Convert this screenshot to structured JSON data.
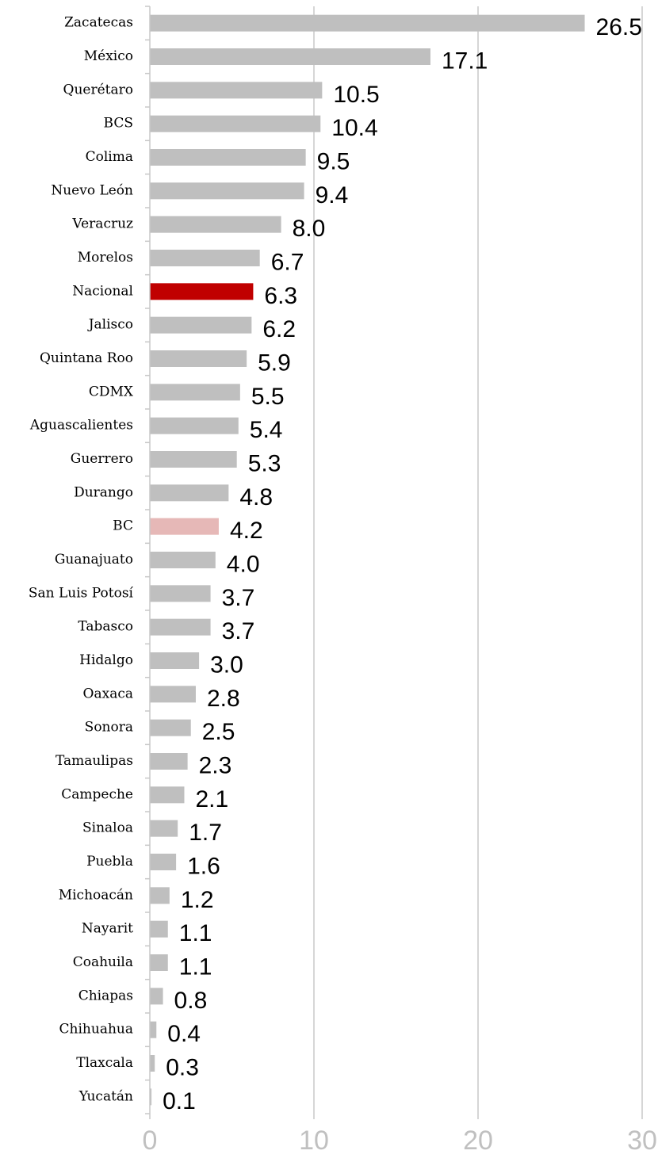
{
  "chart_data": {
    "type": "bar",
    "orientation": "horizontal",
    "categories": [
      "Zacatecas",
      "México",
      "Querétaro",
      "BCS",
      "Colima",
      "Nuevo León",
      "Veracruz",
      "Morelos",
      "Nacional",
      "Jalisco",
      "Quintana Roo",
      "CDMX",
      "Aguascalientes",
      "Guerrero",
      "Durango",
      "BC",
      "Guanajuato",
      "San Luis Potosí",
      "Tabasco",
      "Hidalgo",
      "Oaxaca",
      "Sonora",
      "Tamaulipas",
      "Campeche",
      "Sinaloa",
      "Puebla",
      "Michoacán",
      "Nayarit",
      "Coahuila",
      "Chiapas",
      "Chihuahua",
      "Tlaxcala",
      "Yucatán"
    ],
    "values": [
      26.5,
      17.1,
      10.5,
      10.4,
      9.5,
      9.4,
      8.0,
      6.7,
      6.3,
      6.2,
      5.9,
      5.5,
      5.4,
      5.3,
      4.8,
      4.2,
      4.0,
      3.7,
      3.7,
      3.0,
      2.8,
      2.5,
      2.3,
      2.1,
      1.7,
      1.6,
      1.2,
      1.1,
      1.1,
      0.8,
      0.4,
      0.3,
      0.1
    ],
    "value_labels": [
      "26.5",
      "17.1",
      "10.5",
      "10.4",
      "9.5",
      "9.4",
      "8.0",
      "6.7",
      "6.3",
      "6.2",
      "5.9",
      "5.5",
      "5.4",
      "5.3",
      "4.8",
      "4.2",
      "4.0",
      "3.7",
      "3.7",
      "3.0",
      "2.8",
      "2.5",
      "2.3",
      "2.1",
      "1.7",
      "1.6",
      "1.2",
      "1.1",
      "1.1",
      "0.8",
      "0.4",
      "0.3",
      "0.1"
    ],
    "colors": [
      "#bfbfbf",
      "#bfbfbf",
      "#bfbfbf",
      "#bfbfbf",
      "#bfbfbf",
      "#bfbfbf",
      "#bfbfbf",
      "#bfbfbf",
      "#c00000",
      "#bfbfbf",
      "#bfbfbf",
      "#bfbfbf",
      "#bfbfbf",
      "#bfbfbf",
      "#bfbfbf",
      "#e6b8b7",
      "#bfbfbf",
      "#bfbfbf",
      "#bfbfbf",
      "#bfbfbf",
      "#bfbfbf",
      "#bfbfbf",
      "#bfbfbf",
      "#bfbfbf",
      "#bfbfbf",
      "#bfbfbf",
      "#bfbfbf",
      "#bfbfbf",
      "#bfbfbf",
      "#bfbfbf",
      "#bfbfbf",
      "#bfbfbf",
      "#bfbfbf"
    ],
    "xlim": [
      0,
      30
    ],
    "xticks": [
      0,
      10,
      20,
      30
    ],
    "grid": true
  }
}
